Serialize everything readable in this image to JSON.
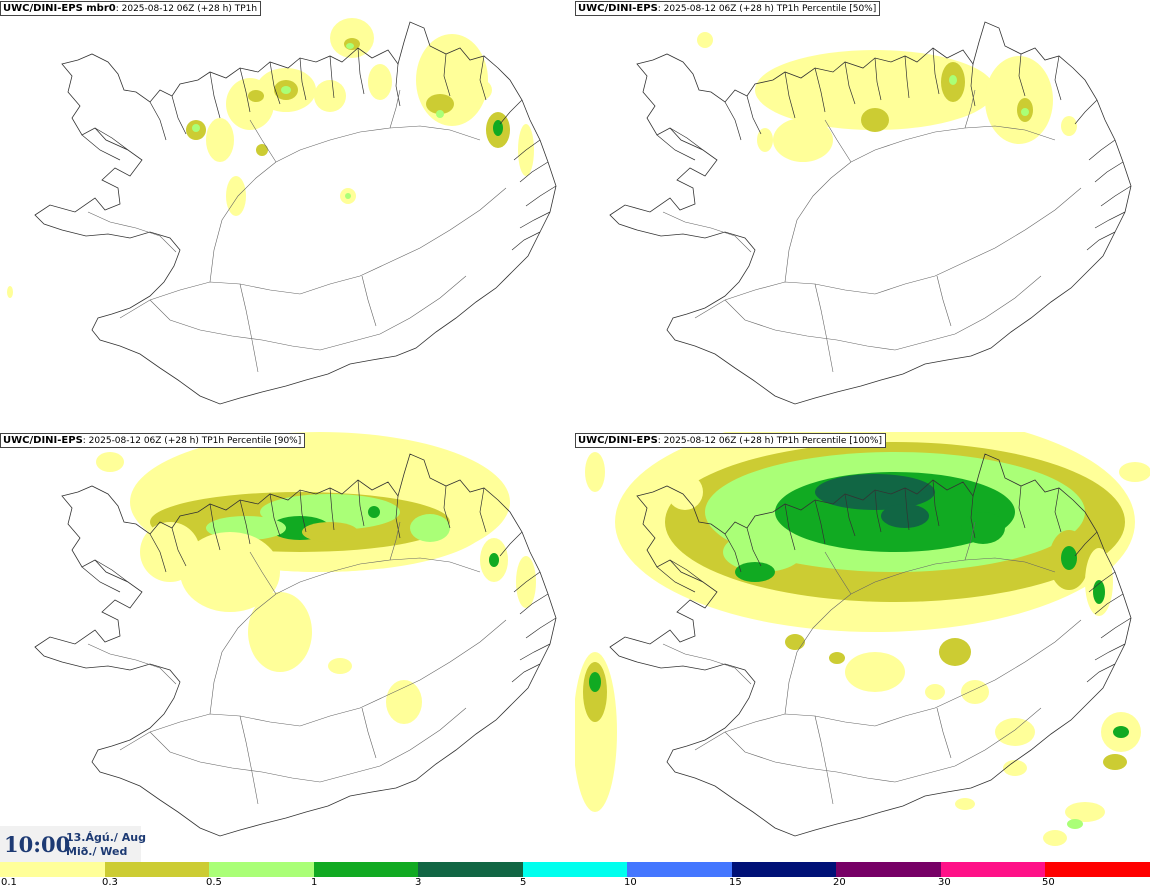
{
  "panels": [
    {
      "model": "UWC/DINI-EPS mbr0",
      "info": ": 2025-08-12 06Z (+28 h) TP1h",
      "level": 1
    },
    {
      "model": "UWC/DINI-EPS",
      "info": ": 2025-08-12 06Z (+28 h) TP1h Percentile [50%]",
      "level": 2
    },
    {
      "model": "UWC/DINI-EPS",
      "info": ": 2025-08-12 06Z (+28 h) TP1h Percentile [90%]",
      "level": 3
    },
    {
      "model": "UWC/DINI-EPS",
      "info": ": 2025-08-12 06Z (+28 h) TP1h Percentile [100%]",
      "level": 4
    }
  ],
  "valid_time": {
    "time": "10:00",
    "date_line1": "13.Ágú./ Aug",
    "date_line2": "Mið./ Wed"
  },
  "legend": {
    "colors": [
      "#ffff99",
      "#cccc33",
      "#aaff77",
      "#11aa22",
      "#116644",
      "#00ffee",
      "#4477ff",
      "#001177",
      "#770066",
      "#ff1188",
      "#ff0000"
    ],
    "ticks": [
      "0.1",
      "0.3",
      "0.5",
      "1",
      "3",
      "5",
      "10",
      "15",
      "20",
      "30",
      "50"
    ]
  }
}
